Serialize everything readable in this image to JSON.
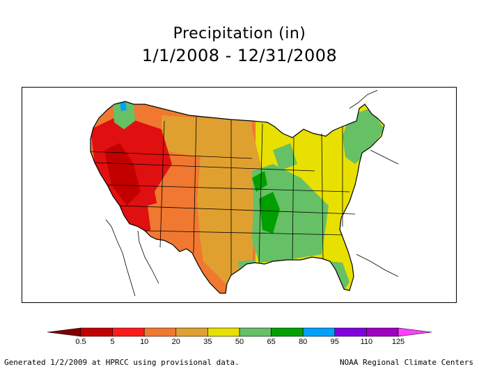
{
  "title": {
    "line1": "Precipitation (in)",
    "line2": "1/1/2008 - 12/31/2008"
  },
  "legend": {
    "labels": [
      "0.5",
      "5",
      "10",
      "20",
      "35",
      "50",
      "65",
      "80",
      "95",
      "110",
      "125"
    ],
    "colors": [
      "#7f0000",
      "#c20000",
      "#ff1a1a",
      "#f07830",
      "#e0a030",
      "#e8e000",
      "#66c066",
      "#00a000",
      "#00a0ff",
      "#8000e0",
      "#a000c0",
      "#ff40ff"
    ]
  },
  "colors": {
    "dry": "#e01010",
    "very_dry": "#c20000",
    "semi_dry": "#f07830",
    "moderate": "#e0a030",
    "average": "#e8e000",
    "wet": "#66c066",
    "very_wet": "#00a000",
    "extreme_wet": "#00a0ff",
    "outline": "#000000"
  },
  "footer": {
    "left": "Generated 1/2/2009 at HPRCC using provisional data.",
    "right": "NOAA Regional Climate Centers"
  }
}
